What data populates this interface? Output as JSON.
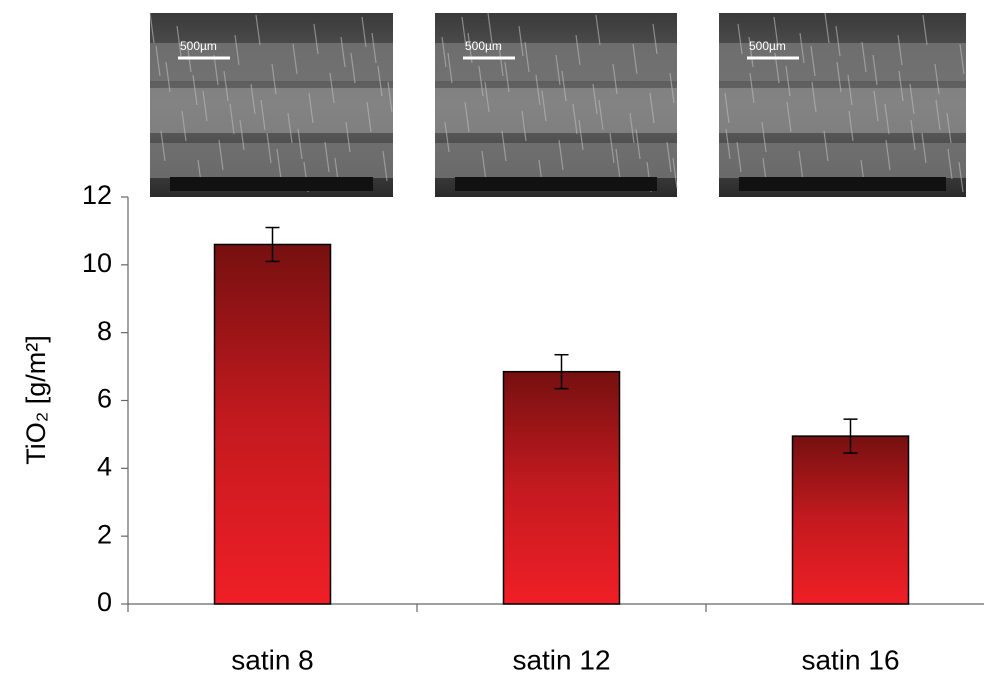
{
  "chart_data": {
    "type": "bar",
    "ylabel": "TiO₂ [g/m²]",
    "categories": [
      "satin 8",
      "satin 12",
      "satin 16"
    ],
    "values": [
      10.6,
      6.85,
      4.95
    ],
    "errors": [
      0.5,
      0.5,
      0.5
    ],
    "ylim": [
      0,
      12
    ],
    "yticks": [
      0,
      2,
      4,
      6,
      8,
      10,
      12
    ],
    "grid": false
  },
  "images": [
    {
      "scale_label": "500µm"
    },
    {
      "scale_label": "500µm"
    },
    {
      "scale_label": "500µm"
    }
  ]
}
